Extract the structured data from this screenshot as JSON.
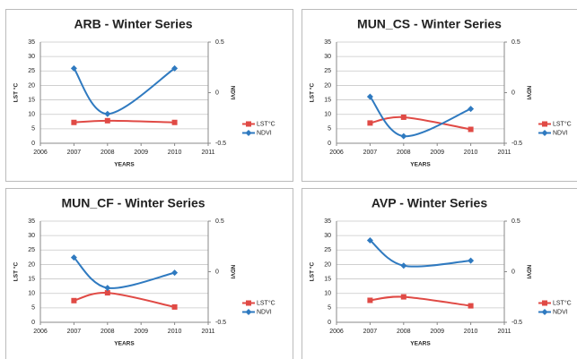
{
  "chart_data": [
    {
      "type": "line",
      "title": "ARB - Winter Series",
      "xlabel": "YEARS",
      "ylabel": "LST °C",
      "y2label": "NDVI",
      "x": [
        2007,
        2008,
        2010
      ],
      "xlim": [
        2006,
        2011
      ],
      "xticks": [
        2006,
        2007,
        2008,
        2009,
        2010,
        2011
      ],
      "ylim": [
        0,
        35
      ],
      "yticks": [
        0,
        5,
        10,
        15,
        20,
        25,
        30,
        35
      ],
      "y2lim": [
        -0.5,
        0.5
      ],
      "y2ticks": [
        -0.5,
        0,
        0.5
      ],
      "grid": true,
      "legend": "right",
      "series": [
        {
          "name": "LST°C",
          "color": "#e04a45",
          "values": [
            7.2,
            7.8,
            7.2
          ]
        },
        {
          "name": "NDVI",
          "color": "#2f7ac0",
          "axis": "y2",
          "values": [
            0.24,
            -0.21,
            0.24
          ]
        }
      ]
    },
    {
      "type": "line",
      "title": "MUN_CS - Winter Series",
      "xlabel": "YEARS",
      "ylabel": "LST °C",
      "y2label": "NDVI",
      "x": [
        2007,
        2008,
        2010
      ],
      "xlim": [
        2006,
        2011
      ],
      "xticks": [
        2006,
        2007,
        2008,
        2009,
        2010,
        2011
      ],
      "ylim": [
        0,
        35
      ],
      "yticks": [
        0,
        5,
        10,
        15,
        20,
        25,
        30,
        35
      ],
      "y2lim": [
        -0.5,
        0.5
      ],
      "y2ticks": [
        -0.5,
        0,
        0.5
      ],
      "grid": true,
      "legend": "right",
      "series": [
        {
          "name": "LST°C",
          "color": "#e04a45",
          "values": [
            7,
            9,
            4.8
          ]
        },
        {
          "name": "NDVI",
          "color": "#2f7ac0",
          "axis": "y2",
          "values": [
            -0.04,
            -0.43,
            -0.16
          ]
        }
      ]
    },
    {
      "type": "line",
      "title": "MUN_CF - Winter Series",
      "xlabel": "YEARS",
      "ylabel": "LST °C",
      "y2label": "NDVI",
      "x": [
        2007,
        2008,
        2010
      ],
      "xlim": [
        2006,
        2011
      ],
      "xticks": [
        2006,
        2007,
        2008,
        2009,
        2010,
        2011
      ],
      "ylim": [
        0,
        35
      ],
      "yticks": [
        0,
        5,
        10,
        15,
        20,
        25,
        30,
        35
      ],
      "y2lim": [
        -0.5,
        0.5
      ],
      "y2ticks": [
        -0.5,
        0,
        0.5
      ],
      "grid": true,
      "legend": "right",
      "series": [
        {
          "name": "LST°C",
          "color": "#e04a45",
          "values": [
            7.5,
            10.2,
            5.3
          ]
        },
        {
          "name": "NDVI",
          "color": "#2f7ac0",
          "axis": "y2",
          "values": [
            0.14,
            -0.16,
            -0.01
          ]
        }
      ]
    },
    {
      "type": "line",
      "title": "AVP - Winter Series",
      "xlabel": "YEARS",
      "ylabel": "LST °C",
      "y2label": "NDVI",
      "x": [
        2007,
        2008,
        2010
      ],
      "xlim": [
        2006,
        2011
      ],
      "xticks": [
        2006,
        2007,
        2008,
        2009,
        2010,
        2011
      ],
      "ylim": [
        0,
        35
      ],
      "yticks": [
        0,
        5,
        10,
        15,
        20,
        25,
        30,
        35
      ],
      "y2lim": [
        -0.5,
        0.5
      ],
      "y2ticks": [
        -0.5,
        0,
        0.5
      ],
      "grid": true,
      "legend": "right",
      "series": [
        {
          "name": "LST°C",
          "color": "#e04a45",
          "values": [
            7.6,
            8.8,
            5.7
          ]
        },
        {
          "name": "NDVI",
          "color": "#2f7ac0",
          "axis": "y2",
          "values": [
            0.31,
            0.06,
            0.11
          ]
        }
      ]
    }
  ]
}
